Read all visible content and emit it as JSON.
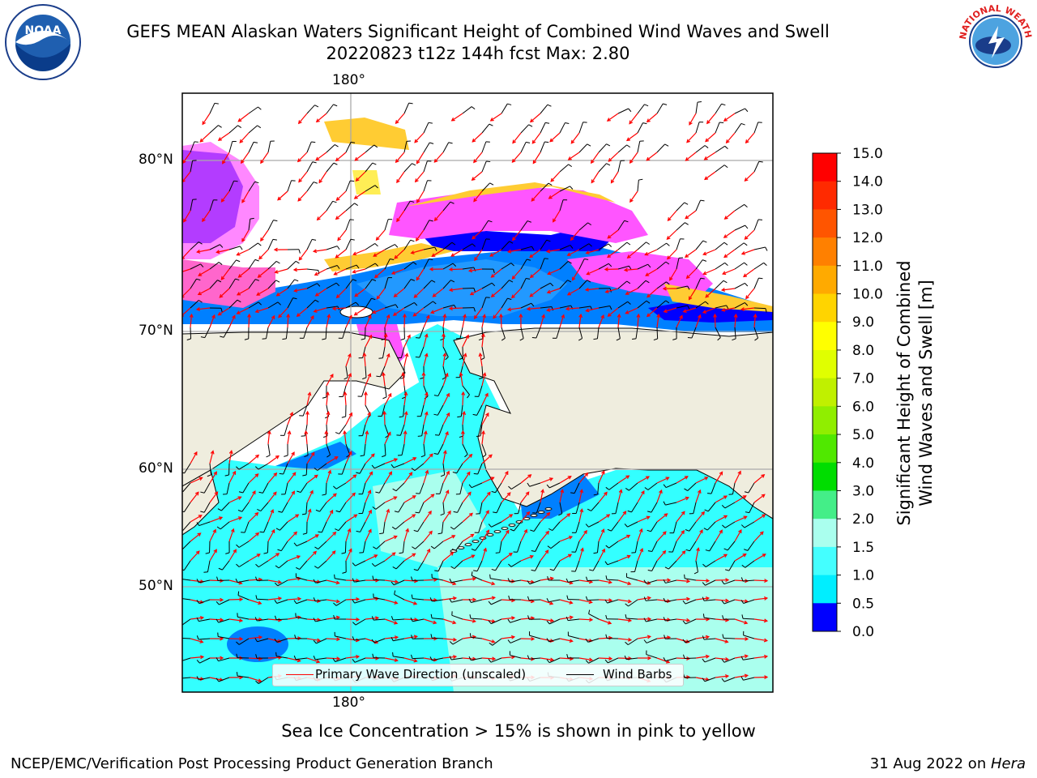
{
  "header": {
    "title_line1": "GEFS MEAN Alaskan Waters Significant Height of Combined Wind Waves and Swell",
    "title_line2": "20220823 t12z 144h fcst   Max: 2.80",
    "left_logo_text": "NOAA",
    "right_logo_text": "NATIONAL WEATHER SERVICE"
  },
  "map": {
    "lon_label_top": "180°",
    "lon_label_bottom": "180°",
    "lat_labels": [
      "80°N",
      "70°N",
      "60°N",
      "50°N"
    ],
    "land_color": "#efedde",
    "ice_colors": [
      "#ff55ff",
      "#ff66cc",
      "#ffcc33",
      "#ffee55"
    ],
    "legend": {
      "wave_dir_label": "Primary Wave Direction (unscaled)",
      "wind_barbs_label": "Wind Barbs",
      "wave_dir_color": "#ff0000",
      "wind_barbs_color": "#000000"
    }
  },
  "colorbar": {
    "title_line1": "Significant Height of Combined",
    "title_line2": "Wind Waves and Swell [m]",
    "labels": [
      "15.0",
      "14.0",
      "13.0",
      "12.0",
      "11.0",
      "10.0",
      "9.0",
      "8.0",
      "7.0",
      "6.0",
      "5.0",
      "4.0",
      "3.0",
      "2.0",
      "1.5",
      "1.0",
      "0.5",
      "0.0"
    ],
    "colors_top_to_bottom": [
      "#ff0000",
      "#ff2a00",
      "#ff5500",
      "#ff8000",
      "#ffaa00",
      "#ffd400",
      "#ffff00",
      "#e0ff00",
      "#c0f000",
      "#90ee00",
      "#50e800",
      "#00dd00",
      "#44ee88",
      "#aaffee",
      "#44ffff",
      "#00eeff",
      "#0080ff",
      "#0000ff"
    ]
  },
  "caption": "Sea Ice Concentration > 15% is shown in pink to yellow",
  "footer": {
    "left": "NCEP/EMC/Verification Post Processing Product Generation Branch",
    "right_date": "31 Aug 2022 on ",
    "right_machine": "Hera"
  }
}
